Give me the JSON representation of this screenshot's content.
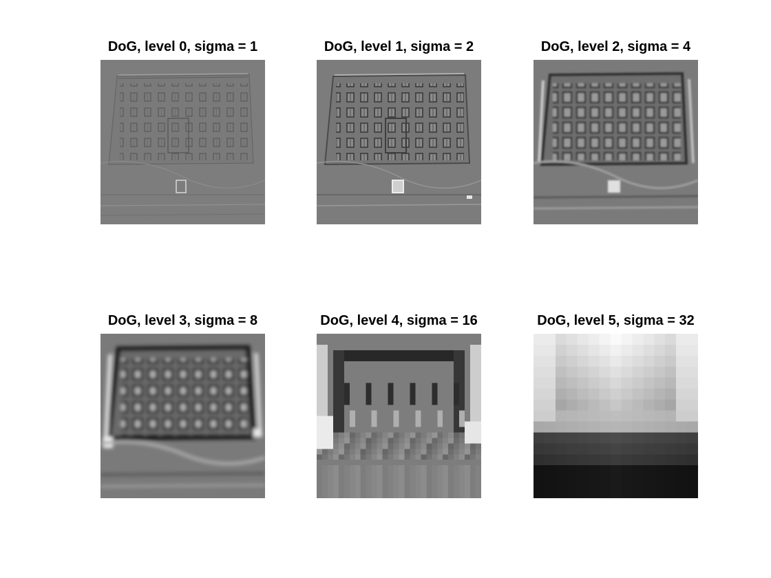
{
  "panels": [
    {
      "title": "DoG, level 0, sigma = 1"
    },
    {
      "title": "DoG, level 1, sigma = 2"
    },
    {
      "title": "DoG, level 2, sigma = 4"
    },
    {
      "title": "DoG, level 3, sigma = 8"
    },
    {
      "title": "DoG, level 4, sigma = 16"
    },
    {
      "title": "DoG, level 5, sigma = 32"
    }
  ]
}
